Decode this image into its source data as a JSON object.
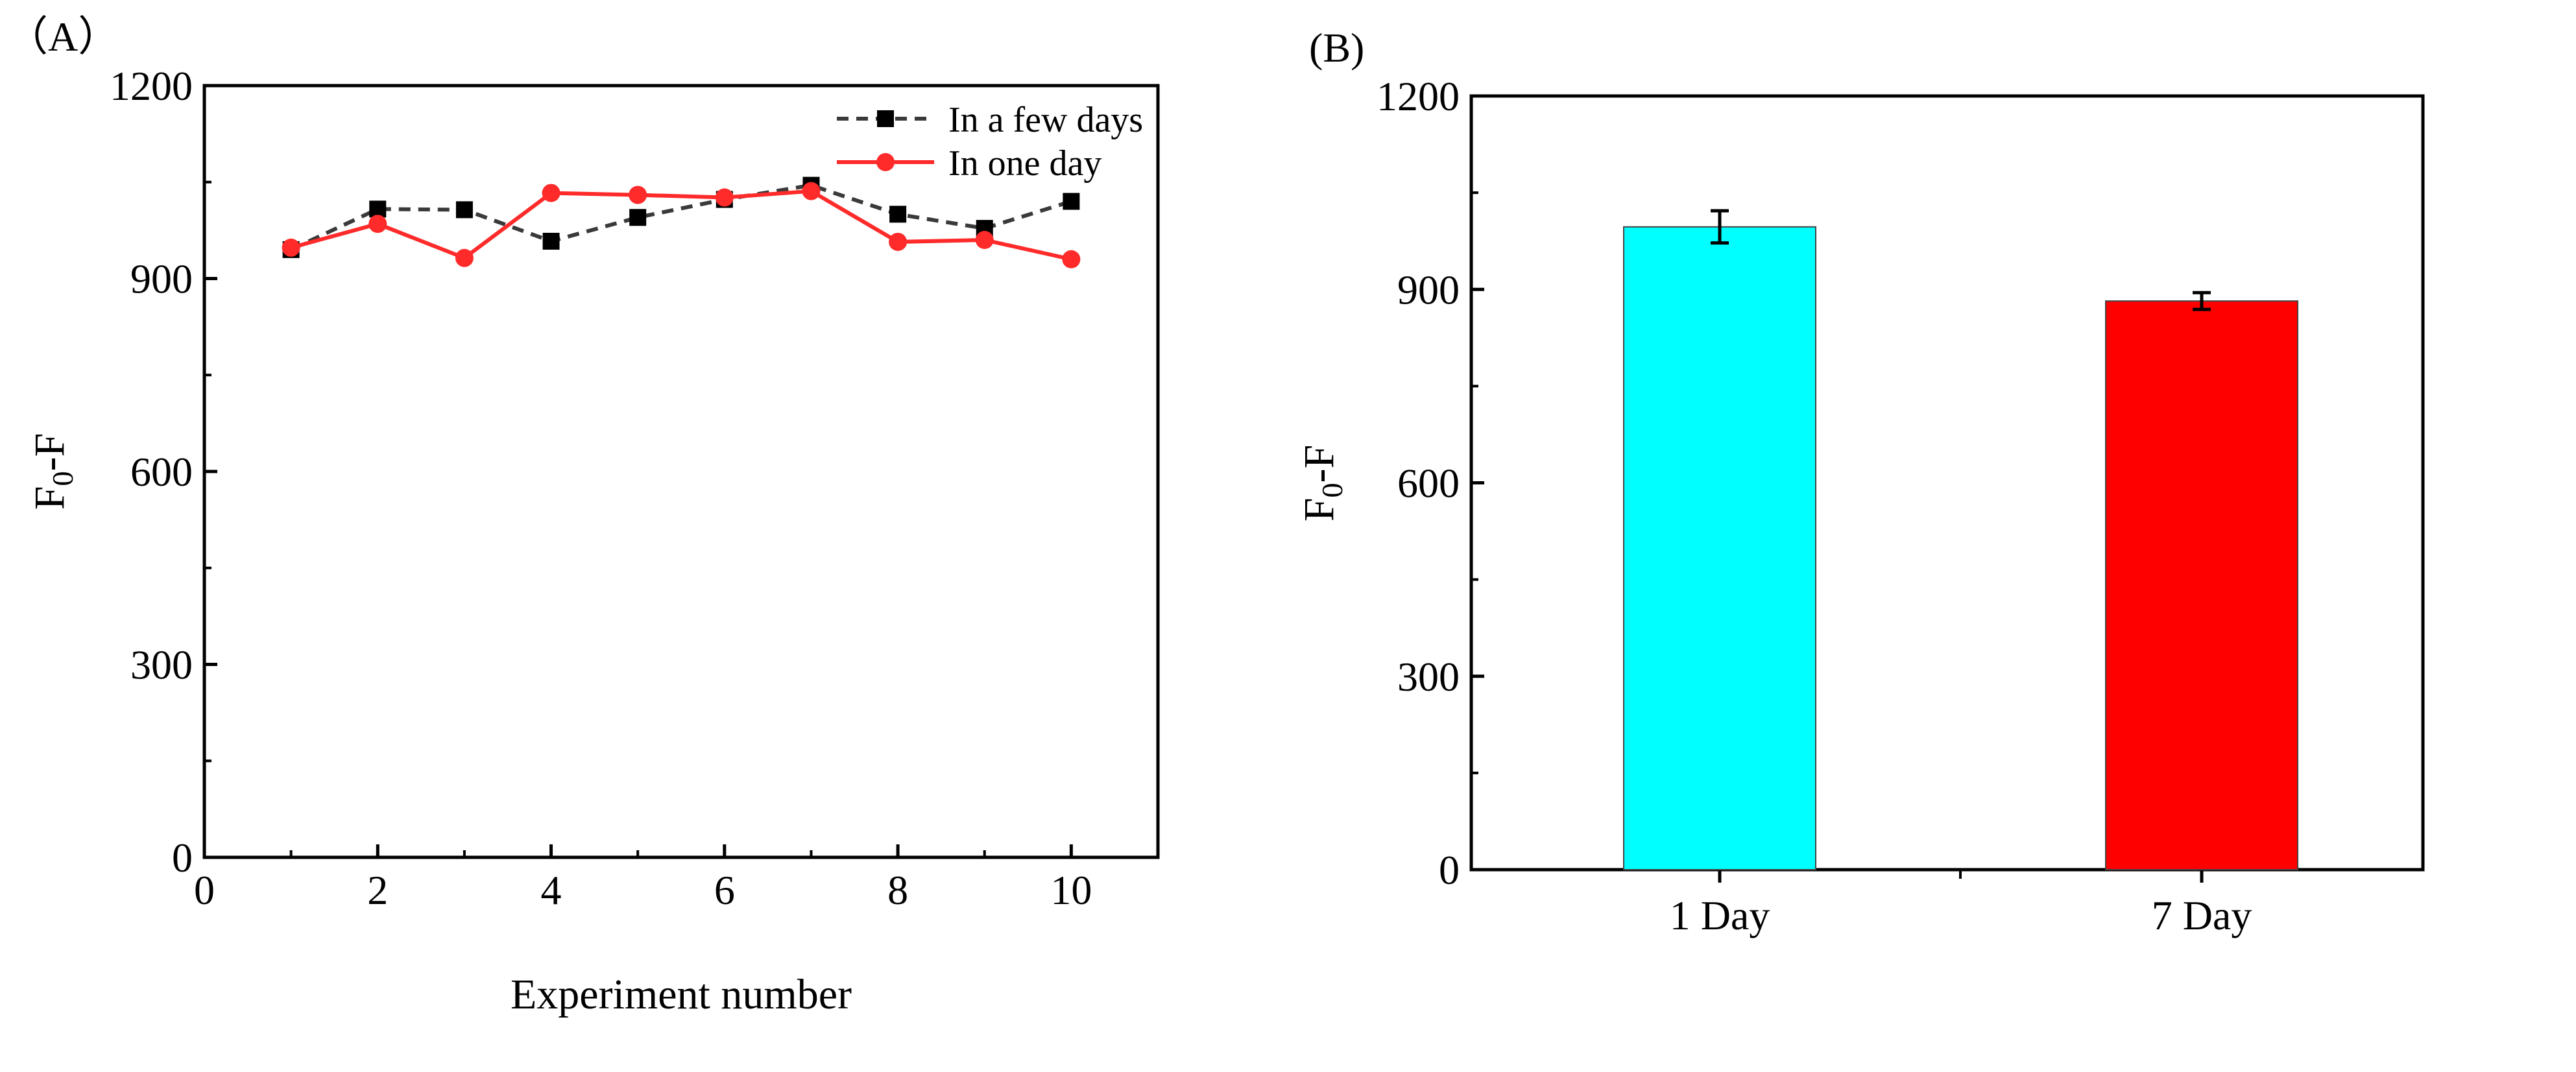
{
  "panel_labels": {
    "a": "（A）",
    "b": "(B)"
  },
  "colors": {
    "few_days": "#3a3a3a",
    "one_day": "#ff2a2a",
    "bar_1day": "#00ffff",
    "bar_7day": "#ff0000",
    "axis": "#000000"
  },
  "chart_data": [
    {
      "id": "A",
      "type": "line",
      "title": "",
      "xlabel": "Experiment number",
      "ylabel_main": "F",
      "ylabel_sub": "0",
      "ylabel_tail": "-F",
      "xlim": [
        0,
        11
      ],
      "ylim": [
        0,
        1200
      ],
      "xticks": [
        0,
        2,
        4,
        6,
        8,
        10
      ],
      "yticks": [
        0,
        300,
        600,
        900,
        1200
      ],
      "legend_position": "top-right",
      "x": [
        1,
        2,
        3,
        4,
        5,
        6,
        7,
        8,
        9,
        10
      ],
      "series": [
        {
          "name": "In a few days",
          "marker": "square",
          "dash": true,
          "values": [
            945,
            1008,
            1007,
            958,
            995,
            1023,
            1045,
            1000,
            978,
            1020
          ]
        },
        {
          "name": "In one day",
          "marker": "circle",
          "dash": false,
          "values": [
            948,
            985,
            932,
            1033,
            1030,
            1026,
            1036,
            957,
            960,
            930
          ]
        }
      ]
    },
    {
      "id": "B",
      "type": "bar",
      "title": "",
      "xlabel": "",
      "ylabel_main": "F",
      "ylabel_sub": "0",
      "ylabel_tail": "-F",
      "ylim": [
        0,
        1200
      ],
      "yticks": [
        0,
        300,
        600,
        900,
        1200
      ],
      "categories": [
        "1 Day",
        "7 Day"
      ],
      "values": [
        997,
        882
      ],
      "errors": [
        25,
        13
      ]
    }
  ]
}
